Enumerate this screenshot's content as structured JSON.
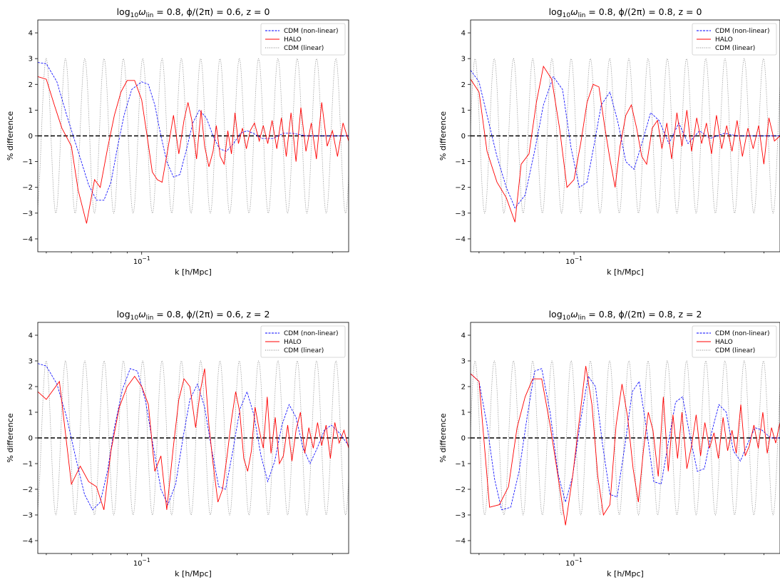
{
  "chart_data": [
    {
      "type": "line",
      "title_parts": {
        "log": "log",
        "sub10": "10",
        "omega": "ω",
        "lin": "lin",
        "mid": " = 0.8, ϕ/(2π) = ",
        "phi": "0.6",
        "z": ", z = 0"
      },
      "xlabel": "k [h/Mpc]",
      "ylabel": "% difference",
      "xscale": "log",
      "xlim": [
        0.047,
        0.45
      ],
      "ylim": [
        -4.5,
        4.5
      ],
      "yticks": [
        "−4",
        "−3",
        "−2",
        "−1",
        "0",
        "1",
        "2",
        "3",
        "4"
      ],
      "xtick_major": {
        "base": "10",
        "exp": "−1",
        "value": 0.1
      },
      "legend_position": "top-right",
      "series": [
        {
          "name": "CDM (non-linear)",
          "color": "#0000ff",
          "style": "dashed",
          "x": [
            0.047,
            0.05,
            0.054,
            0.058,
            0.063,
            0.068,
            0.072,
            0.076,
            0.08,
            0.084,
            0.088,
            0.093,
            0.1,
            0.105,
            0.11,
            0.115,
            0.12,
            0.126,
            0.132,
            0.138,
            0.145,
            0.152,
            0.16,
            0.168,
            0.176,
            0.185,
            0.195,
            0.205,
            0.215,
            0.225,
            0.24,
            0.26,
            0.28,
            0.3,
            0.33,
            0.36,
            0.4,
            0.45
          ],
          "y": [
            2.85,
            2.8,
            2.1,
            0.8,
            -0.6,
            -1.9,
            -2.5,
            -2.5,
            -1.8,
            -0.4,
            0.8,
            1.8,
            2.1,
            2.0,
            1.2,
            0.0,
            -1.0,
            -1.6,
            -1.5,
            -0.6,
            0.5,
            1.0,
            0.7,
            0.0,
            -0.5,
            -0.6,
            -0.3,
            0.1,
            0.2,
            0.1,
            -0.1,
            -0.1,
            0.1,
            0.1,
            0.0,
            0.0,
            0.0,
            0.0
          ]
        },
        {
          "name": "HALO",
          "color": "#ff0000",
          "style": "solid",
          "x": [
            0.047,
            0.05,
            0.053,
            0.056,
            0.06,
            0.063,
            0.067,
            0.071,
            0.074,
            0.078,
            0.082,
            0.086,
            0.09,
            0.095,
            0.1,
            0.104,
            0.108,
            0.112,
            0.116,
            0.121,
            0.126,
            0.131,
            0.136,
            0.14,
            0.144,
            0.149,
            0.154,
            0.158,
            0.163,
            0.168,
            0.172,
            0.177,
            0.182,
            0.187,
            0.192,
            0.197,
            0.202,
            0.208,
            0.214,
            0.22,
            0.227,
            0.235,
            0.242,
            0.25,
            0.258,
            0.267,
            0.276,
            0.286,
            0.296,
            0.307,
            0.318,
            0.33,
            0.343,
            0.356,
            0.37,
            0.385,
            0.4,
            0.415,
            0.432,
            0.45
          ],
          "y": [
            2.3,
            2.2,
            1.2,
            0.3,
            -0.4,
            -2.1,
            -3.4,
            -1.7,
            -2.0,
            -0.5,
            0.8,
            1.7,
            2.15,
            2.15,
            1.4,
            0.0,
            -1.4,
            -1.7,
            -1.8,
            -0.5,
            0.8,
            -0.7,
            0.6,
            1.3,
            0.6,
            -0.9,
            1.0,
            -0.4,
            -1.2,
            -0.6,
            0.4,
            -0.8,
            -1.1,
            0.2,
            -0.7,
            0.9,
            -0.3,
            0.3,
            -0.5,
            0.2,
            0.5,
            -0.2,
            0.4,
            -0.3,
            0.6,
            -0.5,
            0.7,
            -0.8,
            0.9,
            -1.0,
            1.1,
            -0.6,
            0.5,
            -0.9,
            1.3,
            -0.4,
            0.2,
            -0.8,
            0.5,
            -0.2
          ]
        },
        {
          "name": "CDM (linear)",
          "color": "#808080",
          "style": "dotted",
          "model": "sine",
          "amplitude": 3.0,
          "phase": 0.6
        }
      ]
    },
    {
      "type": "line",
      "title_parts": {
        "log": "log",
        "sub10": "10",
        "omega": "ω",
        "lin": "lin",
        "mid": " = 0.8, ϕ/(2π) = ",
        "phi": "0.8",
        "z": ", z = 0"
      },
      "xlabel": "k [h/Mpc]",
      "ylabel": "% difference",
      "xscale": "log",
      "xlim": [
        0.047,
        0.45
      ],
      "ylim": [
        -4.5,
        4.5
      ],
      "yticks": [
        "−4",
        "−3",
        "−2",
        "−1",
        "0",
        "1",
        "2",
        "3",
        "4"
      ],
      "xtick_major": {
        "base": "10",
        "exp": "−1",
        "value": 0.1
      },
      "legend_position": "top-right",
      "series": [
        {
          "name": "CDM (non-linear)",
          "color": "#0000ff",
          "style": "dashed",
          "x": [
            0.047,
            0.05,
            0.053,
            0.057,
            0.061,
            0.065,
            0.07,
            0.075,
            0.08,
            0.086,
            0.092,
            0.098,
            0.104,
            0.11,
            0.116,
            0.122,
            0.13,
            0.138,
            0.146,
            0.155,
            0.165,
            0.175,
            0.186,
            0.2,
            0.215,
            0.23,
            0.25,
            0.27,
            0.3,
            0.33,
            0.37,
            0.41,
            0.45
          ],
          "y": [
            2.55,
            2.1,
            0.8,
            -0.8,
            -2.0,
            -2.8,
            -2.3,
            -0.6,
            1.2,
            2.3,
            1.8,
            -0.5,
            -2.0,
            -1.8,
            -0.3,
            1.2,
            1.7,
            0.5,
            -1.0,
            -1.3,
            -0.2,
            0.9,
            0.6,
            -0.3,
            0.5,
            -0.3,
            0.2,
            -0.1,
            0.1,
            0.0,
            0.0,
            0.0,
            0.0
          ]
        },
        {
          "name": "HALO",
          "color": "#ff0000",
          "style": "solid",
          "x": [
            0.047,
            0.05,
            0.053,
            0.057,
            0.061,
            0.065,
            0.068,
            0.072,
            0.076,
            0.08,
            0.085,
            0.09,
            0.095,
            0.1,
            0.105,
            0.11,
            0.115,
            0.12,
            0.125,
            0.13,
            0.135,
            0.14,
            0.146,
            0.152,
            0.158,
            0.164,
            0.17,
            0.177,
            0.184,
            0.19,
            0.197,
            0.204,
            0.212,
            0.22,
            0.228,
            0.236,
            0.245,
            0.254,
            0.263,
            0.273,
            0.283,
            0.294,
            0.305,
            0.317,
            0.329,
            0.342,
            0.356,
            0.37,
            0.385,
            0.4,
            0.415,
            0.432,
            0.45
          ],
          "y": [
            2.2,
            1.7,
            -0.6,
            -1.8,
            -2.4,
            -3.35,
            -1.1,
            -0.7,
            1.3,
            2.7,
            2.2,
            0.3,
            -2.0,
            -1.7,
            -0.3,
            1.3,
            2.0,
            1.9,
            0.4,
            -0.9,
            -2.0,
            -0.4,
            0.8,
            1.2,
            0.3,
            -0.8,
            -1.1,
            0.3,
            0.6,
            -0.5,
            0.5,
            -0.9,
            0.9,
            -0.4,
            1.0,
            -0.6,
            0.7,
            -0.3,
            0.5,
            -0.7,
            0.8,
            -0.5,
            0.4,
            -0.6,
            0.6,
            -0.8,
            0.3,
            -0.5,
            0.4,
            -1.1,
            0.7,
            -0.2,
            0.0
          ]
        },
        {
          "name": "CDM (linear)",
          "color": "#808080",
          "style": "dotted",
          "model": "sine",
          "amplitude": 3.0,
          "phase": 0.8
        }
      ]
    },
    {
      "type": "line",
      "title_parts": {
        "log": "log",
        "sub10": "10",
        "omega": "ω",
        "lin": "lin",
        "mid": " = 0.8, ϕ/(2π) = ",
        "phi": "0.6",
        "z": ", z = 2"
      },
      "xlabel": "k [h/Mpc]",
      "ylabel": "% difference",
      "xscale": "log",
      "xlim": [
        0.047,
        0.45
      ],
      "ylim": [
        -4.5,
        4.5
      ],
      "yticks": [
        "−4",
        "−3",
        "−2",
        "−1",
        "0",
        "1",
        "2",
        "3",
        "4"
      ],
      "xtick_major": {
        "base": "10",
        "exp": "−1",
        "value": 0.1
      },
      "legend_position": "top-right",
      "series": [
        {
          "name": "CDM (non-linear)",
          "color": "#0000ff",
          "style": "dashed",
          "x": [
            0.047,
            0.05,
            0.054,
            0.058,
            0.062,
            0.066,
            0.07,
            0.074,
            0.078,
            0.082,
            0.087,
            0.092,
            0.097,
            0.103,
            0.109,
            0.115,
            0.121,
            0.128,
            0.135,
            0.142,
            0.15,
            0.158,
            0.166,
            0.175,
            0.184,
            0.194,
            0.204,
            0.215,
            0.226,
            0.238,
            0.25,
            0.263,
            0.277,
            0.292,
            0.307,
            0.323,
            0.34,
            0.358,
            0.377,
            0.397,
            0.42,
            0.45
          ],
          "y": [
            2.9,
            2.8,
            2.1,
            0.8,
            -0.8,
            -2.2,
            -2.8,
            -2.5,
            -1.3,
            0.4,
            1.9,
            2.7,
            2.6,
            1.4,
            -0.4,
            -2.0,
            -2.6,
            -1.8,
            0.0,
            1.5,
            2.1,
            1.2,
            -0.4,
            -1.9,
            -2.0,
            -0.5,
            1.1,
            1.8,
            0.9,
            -0.7,
            -1.7,
            -0.9,
            0.5,
            1.3,
            0.8,
            -0.4,
            -1.0,
            -0.4,
            0.3,
            0.5,
            0.2,
            -0.3
          ]
        },
        {
          "name": "HALO",
          "color": "#ff0000",
          "style": "solid",
          "x": [
            0.047,
            0.05,
            0.055,
            0.06,
            0.064,
            0.068,
            0.072,
            0.076,
            0.08,
            0.085,
            0.09,
            0.095,
            0.1,
            0.105,
            0.11,
            0.115,
            0.12,
            0.126,
            0.131,
            0.136,
            0.142,
            0.148,
            0.153,
            0.158,
            0.163,
            0.168,
            0.174,
            0.18,
            0.186,
            0.192,
            0.198,
            0.204,
            0.21,
            0.216,
            0.222,
            0.228,
            0.235,
            0.242,
            0.249,
            0.256,
            0.264,
            0.272,
            0.28,
            0.289,
            0.298,
            0.307,
            0.317,
            0.327,
            0.337,
            0.348,
            0.359,
            0.37,
            0.382,
            0.394,
            0.407,
            0.42,
            0.435,
            0.45
          ],
          "y": [
            1.8,
            1.5,
            2.2,
            -1.8,
            -1.1,
            -1.7,
            -1.9,
            -2.8,
            -0.5,
            1.2,
            2.0,
            2.4,
            2.0,
            1.3,
            -1.3,
            -0.7,
            -2.8,
            -0.3,
            1.5,
            2.3,
            2.0,
            0.4,
            1.8,
            2.7,
            0.5,
            -1.0,
            -2.5,
            -2.0,
            -0.7,
            0.7,
            1.8,
            1.0,
            -0.8,
            -1.3,
            -0.5,
            1.2,
            0.3,
            -0.4,
            1.6,
            -0.6,
            0.8,
            -1.0,
            -0.7,
            0.5,
            -0.9,
            0.3,
            1.0,
            -0.6,
            0.4,
            -0.4,
            0.6,
            -0.3,
            0.5,
            -0.8,
            0.6,
            -0.2,
            0.3,
            -0.4
          ]
        },
        {
          "name": "CDM (linear)",
          "color": "#808080",
          "style": "dotted",
          "model": "sine",
          "amplitude": 3.0,
          "phase": 0.6
        }
      ]
    },
    {
      "type": "line",
      "title_parts": {
        "log": "log",
        "sub10": "10",
        "omega": "ω",
        "lin": "lin",
        "mid": " = 0.8, ϕ/(2π) = ",
        "phi": "0.8",
        "z": ", z = 2"
      },
      "xlabel": "k [h/Mpc]",
      "ylabel": "% difference",
      "xscale": "log",
      "xlim": [
        0.047,
        0.45
      ],
      "ylim": [
        -4.5,
        4.5
      ],
      "yticks": [
        "−4",
        "−3",
        "−2",
        "−1",
        "0",
        "1",
        "2",
        "3",
        "4"
      ],
      "xtick_major": {
        "base": "10",
        "exp": "−1",
        "value": 0.1
      },
      "legend_position": "top-right",
      "series": [
        {
          "name": "CDM (non-linear)",
          "color": "#0000ff",
          "style": "dashed",
          "x": [
            0.047,
            0.05,
            0.053,
            0.056,
            0.059,
            0.063,
            0.067,
            0.071,
            0.075,
            0.079,
            0.084,
            0.089,
            0.094,
            0.099,
            0.105,
            0.111,
            0.117,
            0.123,
            0.13,
            0.137,
            0.145,
            0.153,
            0.161,
            0.17,
            0.179,
            0.189,
            0.199,
            0.21,
            0.221,
            0.233,
            0.246,
            0.259,
            0.273,
            0.288,
            0.304,
            0.32,
            0.337,
            0.356,
            0.375,
            0.395,
            0.42,
            0.45
          ],
          "y": [
            2.5,
            2.2,
            0.5,
            -1.6,
            -2.8,
            -2.7,
            -1.3,
            0.8,
            2.6,
            2.7,
            1.0,
            -1.4,
            -2.5,
            -1.5,
            0.7,
            2.4,
            2.0,
            -0.2,
            -2.2,
            -2.3,
            -0.3,
            1.8,
            2.2,
            0.3,
            -1.7,
            -1.8,
            -0.2,
            1.4,
            1.6,
            0.1,
            -1.3,
            -1.2,
            0.2,
            1.3,
            1.0,
            -0.5,
            -0.9,
            -0.2,
            0.4,
            0.3,
            0.0,
            0.0
          ]
        },
        {
          "name": "HALO",
          "color": "#ff0000",
          "style": "solid",
          "x": [
            0.047,
            0.05,
            0.054,
            0.058,
            0.062,
            0.066,
            0.07,
            0.074,
            0.079,
            0.084,
            0.089,
            0.094,
            0.099,
            0.104,
            0.109,
            0.114,
            0.119,
            0.124,
            0.13,
            0.136,
            0.142,
            0.148,
            0.154,
            0.16,
            0.166,
            0.172,
            0.178,
            0.185,
            0.192,
            0.199,
            0.206,
            0.213,
            0.22,
            0.228,
            0.236,
            0.244,
            0.252,
            0.26,
            0.269,
            0.278,
            0.287,
            0.297,
            0.307,
            0.317,
            0.327,
            0.338,
            0.349,
            0.36,
            0.372,
            0.384,
            0.397,
            0.41,
            0.423,
            0.436,
            0.45
          ],
          "y": [
            2.5,
            2.2,
            -2.7,
            -2.6,
            -1.9,
            0.4,
            1.6,
            2.3,
            2.3,
            0.5,
            -1.5,
            -3.4,
            -1.5,
            0.7,
            2.8,
            1.3,
            -1.5,
            -3.0,
            -2.6,
            0.5,
            2.1,
            0.8,
            -1.2,
            -2.5,
            -0.5,
            1.0,
            0.3,
            -1.5,
            1.6,
            -1.3,
            0.9,
            -0.8,
            1.0,
            -1.2,
            -0.3,
            0.9,
            -0.7,
            0.6,
            -0.4,
            0.2,
            -0.8,
            0.8,
            -0.5,
            0.3,
            -0.6,
            1.3,
            -0.7,
            -0.3,
            0.5,
            -0.4,
            1.0,
            -0.6,
            0.4,
            -0.2,
            0.6
          ]
        },
        {
          "name": "CDM (linear)",
          "color": "#808080",
          "style": "dotted",
          "model": "sine",
          "amplitude": 3.0,
          "phase": 0.8
        }
      ]
    }
  ]
}
